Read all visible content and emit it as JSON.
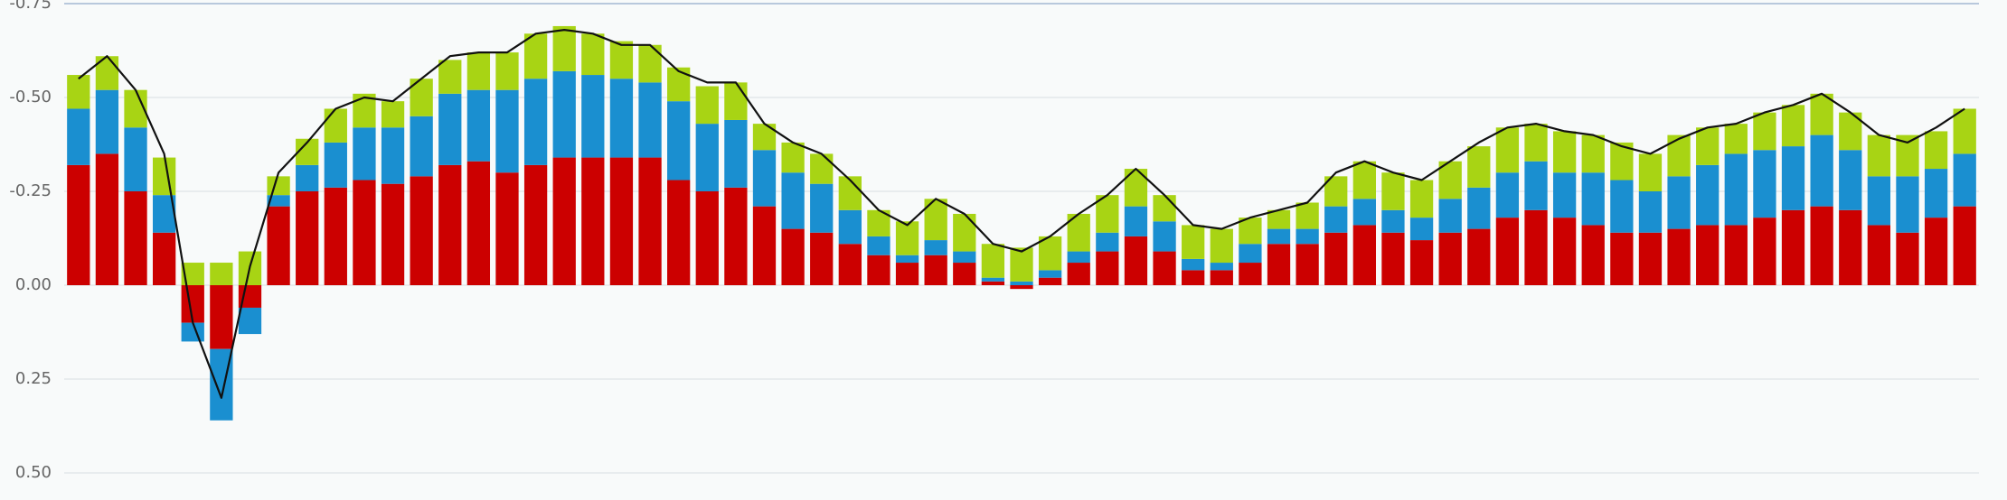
{
  "chart_data": {
    "type": "bar",
    "stacked": true,
    "grid": true,
    "ylim": [
      0.5,
      -0.75
    ],
    "yticks": [
      {
        "value": -0.75,
        "label": "-0.75"
      },
      {
        "value": -0.5,
        "label": "-0.50"
      },
      {
        "value": -0.25,
        "label": "-0.25"
      },
      {
        "value": 0,
        "label": "0.00"
      },
      {
        "value": 0.25,
        "label": "0.25"
      },
      {
        "value": 0.5,
        "label": "0.50"
      }
    ],
    "categories": [
      null,
      null,
      null,
      null,
      null,
      null,
      null,
      null,
      null,
      null,
      null,
      null,
      null,
      null,
      null,
      null,
      null,
      null,
      null,
      null,
      null,
      null,
      null,
      null,
      null,
      null,
      null,
      null,
      null,
      null,
      null,
      null,
      null,
      null,
      null,
      null,
      null,
      null,
      null,
      null,
      null,
      null,
      null,
      null,
      null,
      null,
      null,
      null,
      null,
      null,
      null,
      null,
      null,
      null,
      null,
      null,
      null,
      null,
      null,
      null,
      null,
      null,
      null,
      null,
      null,
      null,
      null
    ],
    "series": [
      {
        "color": "#cc0000",
        "values": [
          -0.32,
          -0.35,
          -0.25,
          -0.14,
          0.1,
          0.17,
          0.06,
          -0.21,
          -0.25,
          -0.26,
          -0.28,
          -0.27,
          -0.29,
          -0.32,
          -0.33,
          -0.3,
          -0.32,
          -0.34,
          -0.34,
          -0.34,
          -0.34,
          -0.28,
          -0.25,
          -0.26,
          -0.21,
          -0.15,
          -0.14,
          -0.11,
          -0.08,
          -0.06,
          -0.08,
          -0.06,
          -0.01,
          0.01,
          -0.02,
          -0.06,
          -0.09,
          -0.13,
          -0.09,
          -0.04,
          -0.04,
          -0.06,
          -0.11,
          -0.11,
          -0.14,
          -0.16,
          -0.14,
          -0.12,
          -0.14,
          -0.15,
          -0.18,
          -0.2,
          -0.18,
          -0.16,
          -0.14,
          -0.14,
          -0.15,
          -0.16,
          -0.16,
          -0.18,
          -0.2,
          -0.21,
          -0.2,
          -0.16,
          -0.14,
          -0.18,
          -0.21
        ]
      },
      {
        "color": "#1a8fd0",
        "values": [
          -0.15,
          -0.17,
          -0.17,
          -0.1,
          0.05,
          0.19,
          0.07,
          -0.03,
          -0.07,
          -0.12,
          -0.14,
          -0.15,
          -0.16,
          -0.19,
          -0.19,
          -0.22,
          -0.23,
          -0.23,
          -0.22,
          -0.21,
          -0.2,
          -0.21,
          -0.18,
          -0.18,
          -0.15,
          -0.15,
          -0.13,
          -0.09,
          -0.05,
          -0.02,
          -0.04,
          -0.03,
          -0.01,
          -0.01,
          -0.02,
          -0.03,
          -0.05,
          -0.08,
          -0.08,
          -0.03,
          -0.02,
          -0.05,
          -0.04,
          -0.04,
          -0.07,
          -0.07,
          -0.06,
          -0.06,
          -0.09,
          -0.11,
          -0.12,
          -0.13,
          -0.12,
          -0.14,
          -0.14,
          -0.11,
          -0.14,
          -0.16,
          -0.19,
          -0.18,
          -0.17,
          -0.19,
          -0.16,
          -0.13,
          -0.15,
          -0.13,
          -0.14
        ]
      },
      {
        "color": "#a8d414",
        "values": [
          -0.09,
          -0.09,
          -0.1,
          -0.1,
          -0.06,
          -0.06,
          -0.09,
          -0.05,
          -0.07,
          -0.09,
          -0.09,
          -0.07,
          -0.1,
          -0.09,
          -0.1,
          -0.1,
          -0.12,
          -0.12,
          -0.11,
          -0.1,
          -0.1,
          -0.09,
          -0.1,
          -0.1,
          -0.07,
          -0.08,
          -0.08,
          -0.09,
          -0.07,
          -0.09,
          -0.11,
          -0.1,
          -0.09,
          -0.09,
          -0.09,
          -0.1,
          -0.1,
          -0.1,
          -0.07,
          -0.09,
          -0.09,
          -0.07,
          -0.05,
          -0.07,
          -0.08,
          -0.1,
          -0.1,
          -0.1,
          -0.1,
          -0.11,
          -0.12,
          -0.1,
          -0.11,
          -0.1,
          -0.1,
          -0.1,
          -0.11,
          -0.1,
          -0.08,
          -0.1,
          -0.11,
          -0.11,
          -0.1,
          -0.11,
          -0.11,
          -0.1,
          -0.12
        ]
      }
    ],
    "line": {
      "color": "#111111",
      "values": [
        -0.55,
        -0.61,
        -0.52,
        -0.35,
        0.1,
        0.3,
        -0.05,
        -0.3,
        -0.38,
        -0.47,
        -0.5,
        -0.49,
        -0.55,
        -0.61,
        -0.62,
        -0.62,
        -0.67,
        -0.68,
        -0.67,
        -0.64,
        -0.64,
        -0.57,
        -0.54,
        -0.54,
        -0.43,
        -0.38,
        -0.35,
        -0.28,
        -0.2,
        -0.16,
        -0.23,
        -0.19,
        -0.11,
        -0.09,
        -0.13,
        -0.19,
        -0.24,
        -0.31,
        -0.24,
        -0.16,
        -0.15,
        -0.18,
        -0.2,
        -0.22,
        -0.3,
        -0.33,
        -0.3,
        -0.28,
        -0.33,
        -0.38,
        -0.42,
        -0.43,
        -0.41,
        -0.4,
        -0.37,
        -0.35,
        -0.39,
        -0.42,
        -0.43,
        -0.46,
        -0.48,
        -0.51,
        -0.46,
        -0.4,
        -0.38,
        -0.42,
        -0.47
      ]
    }
  }
}
